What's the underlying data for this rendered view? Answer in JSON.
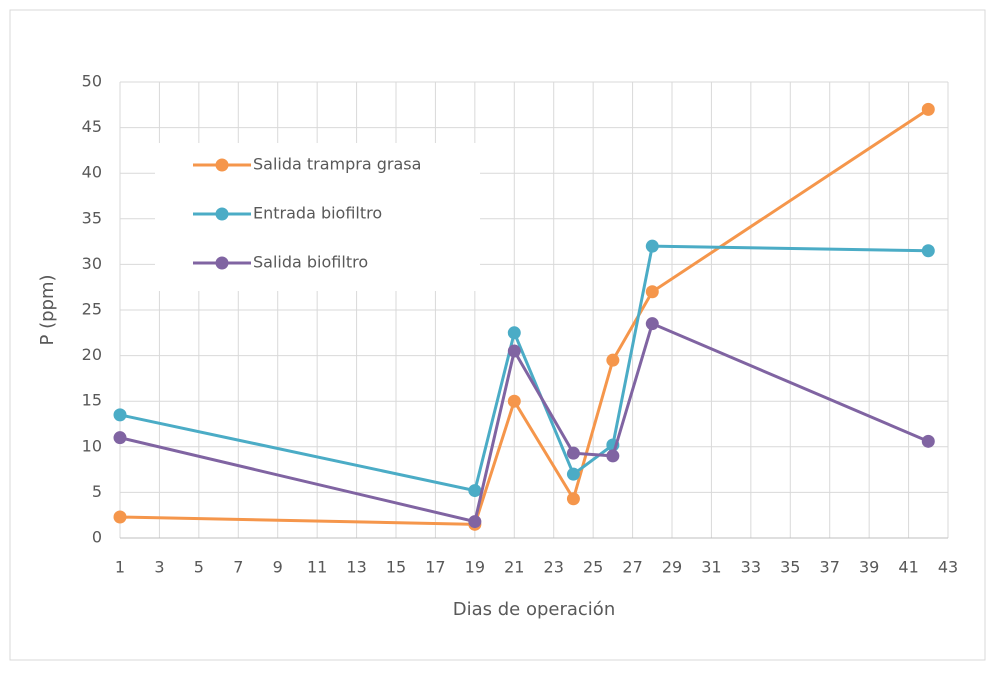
{
  "chart_data": {
    "type": "line",
    "x_label": "Dias de operación",
    "y_label": "P (ppm)",
    "x": [
      1,
      19,
      21,
      24,
      26,
      28,
      42
    ],
    "series": [
      {
        "name": "Salida trampra grasa",
        "color": "#f5964b",
        "values": [
          2.3,
          1.5,
          15,
          4.3,
          19.5,
          27,
          47
        ]
      },
      {
        "name": "Entrada biofiltro",
        "color": "#4bacc6",
        "values": [
          13.5,
          5.2,
          22.5,
          7,
          10.2,
          32,
          31.5
        ]
      },
      {
        "name": "Salida biofiltro",
        "color": "#8064a2",
        "values": [
          11,
          1.8,
          20.5,
          9.3,
          9,
          23.5,
          10.6
        ]
      }
    ],
    "xlim": [
      1,
      43
    ],
    "xticks": [
      1,
      3,
      5,
      7,
      9,
      11,
      13,
      15,
      17,
      19,
      21,
      23,
      25,
      27,
      29,
      31,
      33,
      35,
      37,
      39,
      41,
      43
    ],
    "ylim": [
      0,
      50
    ],
    "yticks": [
      0,
      5,
      10,
      15,
      20,
      25,
      30,
      35,
      40,
      45,
      50
    ],
    "grid": true,
    "legend": "upper left"
  }
}
